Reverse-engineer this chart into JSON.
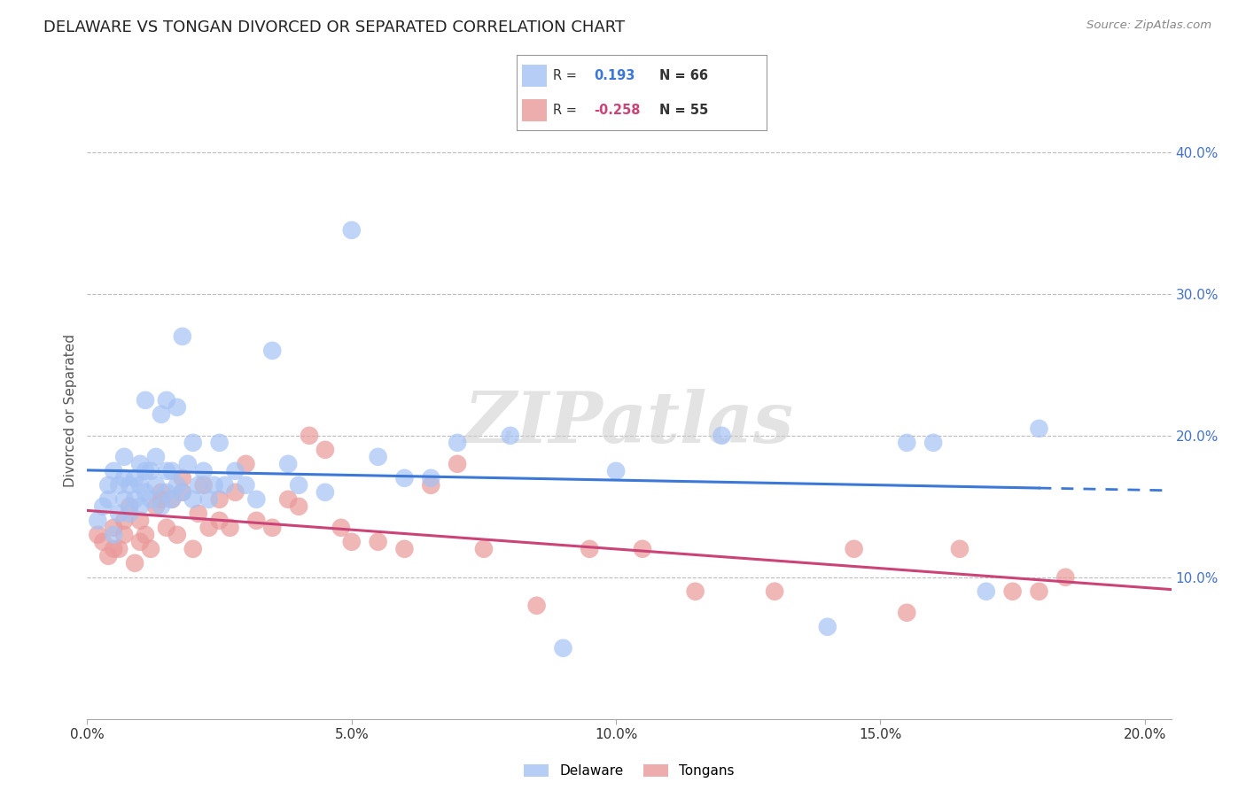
{
  "title": "DELAWARE VS TONGAN DIVORCED OR SEPARATED CORRELATION CHART",
  "source": "Source: ZipAtlas.com",
  "ylabel": "Divorced or Separated",
  "xlim": [
    0.0,
    0.205
  ],
  "ylim": [
    0.0,
    0.435
  ],
  "xticks": [
    0.0,
    0.05,
    0.1,
    0.15,
    0.2
  ],
  "yticks": [
    0.1,
    0.2,
    0.3,
    0.4
  ],
  "ytick_labels": [
    "10.0%",
    "20.0%",
    "30.0%",
    "40.0%"
  ],
  "xtick_labels": [
    "0.0%",
    "5.0%",
    "10.0%",
    "15.0%",
    "20.0%"
  ],
  "delaware_color": "#a4c2f4",
  "tongan_color": "#ea9999",
  "delaware_line_color": "#3c78d8",
  "tongan_line_color": "#cc4477",
  "delaware_R": 0.193,
  "delaware_N": 66,
  "tongan_R": -0.258,
  "tongan_N": 55,
  "background_color": "#ffffff",
  "grid_color": "#bbbbbb",
  "watermark_text": "ZIPatlas",
  "delaware_x": [
    0.002,
    0.003,
    0.004,
    0.004,
    0.005,
    0.005,
    0.006,
    0.006,
    0.007,
    0.007,
    0.007,
    0.008,
    0.008,
    0.009,
    0.009,
    0.01,
    0.01,
    0.01,
    0.011,
    0.011,
    0.011,
    0.012,
    0.012,
    0.013,
    0.013,
    0.014,
    0.014,
    0.015,
    0.015,
    0.015,
    0.016,
    0.016,
    0.017,
    0.017,
    0.018,
    0.018,
    0.019,
    0.02,
    0.02,
    0.021,
    0.022,
    0.023,
    0.024,
    0.025,
    0.026,
    0.028,
    0.03,
    0.032,
    0.035,
    0.038,
    0.04,
    0.045,
    0.05,
    0.055,
    0.06,
    0.065,
    0.07,
    0.08,
    0.09,
    0.1,
    0.12,
    0.14,
    0.155,
    0.16,
    0.17,
    0.18
  ],
  "delaware_y": [
    0.14,
    0.15,
    0.155,
    0.165,
    0.13,
    0.175,
    0.145,
    0.165,
    0.155,
    0.17,
    0.185,
    0.145,
    0.165,
    0.155,
    0.17,
    0.15,
    0.165,
    0.18,
    0.16,
    0.175,
    0.225,
    0.155,
    0.175,
    0.165,
    0.185,
    0.15,
    0.215,
    0.16,
    0.175,
    0.225,
    0.155,
    0.175,
    0.165,
    0.22,
    0.16,
    0.27,
    0.18,
    0.155,
    0.195,
    0.165,
    0.175,
    0.155,
    0.165,
    0.195,
    0.165,
    0.175,
    0.165,
    0.155,
    0.26,
    0.18,
    0.165,
    0.16,
    0.345,
    0.185,
    0.17,
    0.17,
    0.195,
    0.2,
    0.05,
    0.175,
    0.2,
    0.065,
    0.195,
    0.195,
    0.09,
    0.205
  ],
  "tongan_x": [
    0.002,
    0.003,
    0.004,
    0.005,
    0.005,
    0.006,
    0.007,
    0.007,
    0.008,
    0.009,
    0.01,
    0.01,
    0.011,
    0.012,
    0.013,
    0.014,
    0.014,
    0.015,
    0.016,
    0.017,
    0.018,
    0.018,
    0.02,
    0.021,
    0.022,
    0.023,
    0.025,
    0.025,
    0.027,
    0.028,
    0.03,
    0.032,
    0.035,
    0.038,
    0.04,
    0.042,
    0.045,
    0.048,
    0.05,
    0.055,
    0.06,
    0.065,
    0.07,
    0.075,
    0.085,
    0.095,
    0.105,
    0.115,
    0.13,
    0.145,
    0.155,
    0.165,
    0.175,
    0.18,
    0.185
  ],
  "tongan_y": [
    0.13,
    0.125,
    0.115,
    0.12,
    0.135,
    0.12,
    0.14,
    0.13,
    0.15,
    0.11,
    0.125,
    0.14,
    0.13,
    0.12,
    0.15,
    0.16,
    0.155,
    0.135,
    0.155,
    0.13,
    0.16,
    0.17,
    0.12,
    0.145,
    0.165,
    0.135,
    0.155,
    0.14,
    0.135,
    0.16,
    0.18,
    0.14,
    0.135,
    0.155,
    0.15,
    0.2,
    0.19,
    0.135,
    0.125,
    0.125,
    0.12,
    0.165,
    0.18,
    0.12,
    0.08,
    0.12,
    0.12,
    0.09,
    0.09,
    0.12,
    0.075,
    0.12,
    0.09,
    0.09,
    0.1
  ]
}
